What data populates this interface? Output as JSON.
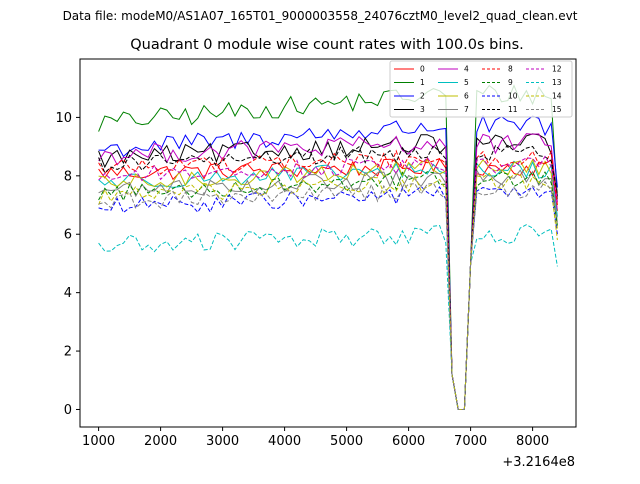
{
  "suptitle": "Data file: modeM0/AS1A07_165T01_9000003558_24076cztM0_level2_quad_clean.evt",
  "chart_data": {
    "type": "line",
    "title": "Quadrant 0 module wise count rates with 100.0s bins.",
    "xlabel": "",
    "ylabel": "",
    "x_offset_label": "+3.2164e8",
    "xlim": [
      700,
      8700
    ],
    "ylim": [
      -0.6,
      12.0
    ],
    "xticks": [
      1000,
      2000,
      3000,
      4000,
      5000,
      6000,
      7000,
      8000
    ],
    "yticks": [
      0,
      2,
      4,
      6,
      8,
      10
    ],
    "x_start": 1000,
    "x_step": 100,
    "gap_times": [
      6700,
      6800,
      6900,
      7000
    ],
    "gap_values": [
      1.2,
      0.0,
      0.0,
      5.0
    ],
    "legend": {
      "location": "top-right",
      "columns": 4
    },
    "series": [
      {
        "name": "0",
        "color": "#ff0000",
        "style": "solid",
        "base": 8.1,
        "trend": 0.2,
        "amp": 0.3,
        "tail": 6.8
      },
      {
        "name": "1",
        "color": "#008000",
        "style": "solid",
        "base": 9.8,
        "trend": 1.0,
        "amp": 0.35,
        "tail": 7.2
      },
      {
        "name": "2",
        "color": "#0000ff",
        "style": "solid",
        "base": 8.9,
        "trend": 0.8,
        "amp": 0.35,
        "tail": 7.6
      },
      {
        "name": "3",
        "color": "#000000",
        "style": "solid",
        "base": 8.6,
        "trend": 0.5,
        "amp": 0.35,
        "tail": 7.3
      },
      {
        "name": "4",
        "color": "#bf00bf",
        "style": "solid",
        "base": 8.7,
        "trend": 0.4,
        "amp": 0.35,
        "tail": 7.1
      },
      {
        "name": "5",
        "color": "#00bfbf",
        "style": "solid",
        "base": 7.8,
        "trend": 0.4,
        "amp": 0.3,
        "tail": 6.6
      },
      {
        "name": "6",
        "color": "#bfbf00",
        "style": "solid",
        "base": 7.7,
        "trend": 0.6,
        "amp": 0.3,
        "tail": 6.2
      },
      {
        "name": "7",
        "color": "#808080",
        "style": "solid",
        "base": 7.5,
        "trend": 0.4,
        "amp": 0.3,
        "tail": 6.4
      },
      {
        "name": "8",
        "color": "#ff0000",
        "style": "dashed",
        "base": 8.3,
        "trend": 0.3,
        "amp": 0.3,
        "tail": 7.0
      },
      {
        "name": "9",
        "color": "#008000",
        "style": "dashed",
        "base": 7.4,
        "trend": 0.5,
        "amp": 0.3,
        "tail": 6.3
      },
      {
        "name": "10",
        "color": "#0000ff",
        "style": "dashed",
        "base": 6.9,
        "trend": 0.5,
        "amp": 0.3,
        "tail": 6.0
      },
      {
        "name": "11",
        "color": "#000000",
        "style": "dashed",
        "base": 8.4,
        "trend": 0.4,
        "amp": 0.3,
        "tail": 7.4
      },
      {
        "name": "12",
        "color": "#bf00bf",
        "style": "dashed",
        "base": 8.0,
        "trend": 0.4,
        "amp": 0.3,
        "tail": 6.8
      },
      {
        "name": "13",
        "color": "#00bfbf",
        "style": "dashed",
        "base": 5.6,
        "trend": 0.4,
        "amp": 0.35,
        "tail": 4.9
      },
      {
        "name": "14",
        "color": "#bfbf00",
        "style": "dashed",
        "base": 7.3,
        "trend": 0.5,
        "amp": 0.3,
        "tail": 5.8
      },
      {
        "name": "15",
        "color": "#808080",
        "style": "dashed",
        "base": 7.1,
        "trend": 0.4,
        "amp": 0.3,
        "tail": 6.5
      }
    ]
  }
}
